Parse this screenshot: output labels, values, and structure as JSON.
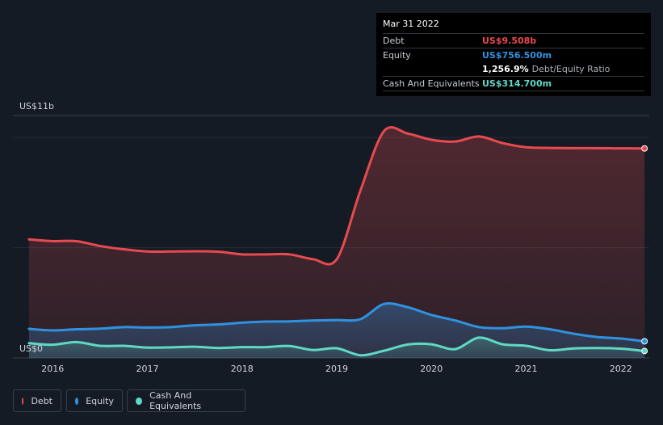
{
  "chart_data": {
    "type": "area",
    "y_axis_top_label": "US$11b",
    "y_axis_bottom_label": "US$0",
    "ylim": [
      0,
      11
    ],
    "x_ticks": [
      {
        "label": "2016",
        "x": 2016.0
      },
      {
        "label": "2017",
        "x": 2017.0
      },
      {
        "label": "2018",
        "x": 2018.0
      },
      {
        "label": "2019",
        "x": 2019.0
      },
      {
        "label": "2020",
        "x": 2020.0
      },
      {
        "label": "2021",
        "x": 2021.0
      },
      {
        "label": "2022",
        "x": 2022.0
      }
    ],
    "xlim": [
      2015.58,
      2022.3
    ],
    "series": [
      {
        "name": "Debt",
        "color": "#e84a4f",
        "points": [
          [
            2015.75,
            5.38
          ],
          [
            2016.0,
            5.3
          ],
          [
            2016.25,
            5.3
          ],
          [
            2016.5,
            5.08
          ],
          [
            2016.75,
            4.93
          ],
          [
            2017.0,
            4.83
          ],
          [
            2017.25,
            4.83
          ],
          [
            2017.5,
            4.84
          ],
          [
            2017.75,
            4.82
          ],
          [
            2018.0,
            4.7
          ],
          [
            2018.25,
            4.7
          ],
          [
            2018.5,
            4.7
          ],
          [
            2018.75,
            4.48
          ],
          [
            2019.0,
            4.48
          ],
          [
            2019.25,
            7.6
          ],
          [
            2019.5,
            10.3
          ],
          [
            2019.75,
            10.18
          ],
          [
            2020.0,
            9.9
          ],
          [
            2020.25,
            9.82
          ],
          [
            2020.5,
            10.05
          ],
          [
            2020.75,
            9.75
          ],
          [
            2021.0,
            9.56
          ],
          [
            2021.25,
            9.53
          ],
          [
            2021.5,
            9.52
          ],
          [
            2021.75,
            9.52
          ],
          [
            2022.0,
            9.51
          ],
          [
            2022.25,
            9.508
          ]
        ]
      },
      {
        "name": "Equity",
        "color": "#2f92e0",
        "points": [
          [
            2015.75,
            1.32
          ],
          [
            2016.0,
            1.25
          ],
          [
            2016.25,
            1.3
          ],
          [
            2016.5,
            1.33
          ],
          [
            2016.75,
            1.4
          ],
          [
            2017.0,
            1.38
          ],
          [
            2017.25,
            1.4
          ],
          [
            2017.5,
            1.48
          ],
          [
            2017.75,
            1.52
          ],
          [
            2018.0,
            1.6
          ],
          [
            2018.25,
            1.65
          ],
          [
            2018.5,
            1.66
          ],
          [
            2018.75,
            1.7
          ],
          [
            2019.0,
            1.72
          ],
          [
            2019.25,
            1.76
          ],
          [
            2019.5,
            2.45
          ],
          [
            2019.75,
            2.3
          ],
          [
            2020.0,
            1.95
          ],
          [
            2020.25,
            1.7
          ],
          [
            2020.5,
            1.4
          ],
          [
            2020.75,
            1.35
          ],
          [
            2021.0,
            1.42
          ],
          [
            2021.25,
            1.3
          ],
          [
            2021.5,
            1.1
          ],
          [
            2021.75,
            0.95
          ],
          [
            2022.0,
            0.88
          ],
          [
            2022.25,
            0.7565
          ]
        ]
      },
      {
        "name": "Cash And Equivalents",
        "color": "#5fd9c6",
        "points": [
          [
            2015.75,
            0.67
          ],
          [
            2016.0,
            0.6
          ],
          [
            2016.25,
            0.72
          ],
          [
            2016.5,
            0.55
          ],
          [
            2016.75,
            0.55
          ],
          [
            2017.0,
            0.47
          ],
          [
            2017.25,
            0.48
          ],
          [
            2017.5,
            0.51
          ],
          [
            2017.75,
            0.45
          ],
          [
            2018.0,
            0.49
          ],
          [
            2018.25,
            0.49
          ],
          [
            2018.5,
            0.54
          ],
          [
            2018.75,
            0.36
          ],
          [
            2019.0,
            0.44
          ],
          [
            2019.25,
            0.12
          ],
          [
            2019.5,
            0.33
          ],
          [
            2019.75,
            0.61
          ],
          [
            2020.0,
            0.62
          ],
          [
            2020.25,
            0.4
          ],
          [
            2020.5,
            0.92
          ],
          [
            2020.75,
            0.62
          ],
          [
            2021.0,
            0.55
          ],
          [
            2021.25,
            0.35
          ],
          [
            2021.5,
            0.43
          ],
          [
            2021.75,
            0.45
          ],
          [
            2022.0,
            0.42
          ],
          [
            2022.25,
            0.3147
          ]
        ]
      }
    ]
  },
  "tooltip": {
    "date": "Mar 31 2022",
    "debt_label": "Debt",
    "debt_value": "US$9.508b",
    "equity_label": "Equity",
    "equity_value": "US$756.500m",
    "ratio_value": "1,256.9%",
    "ratio_label": "Debt/Equity Ratio",
    "cash_label": "Cash And Equivalents",
    "cash_value": "US$314.700m"
  },
  "legend": {
    "debt": "Debt",
    "equity": "Equity",
    "cash": "Cash And Equivalents"
  },
  "colors": {
    "debt": "#e84a4f",
    "equity": "#2f92e0",
    "cash": "#5fd9c6"
  }
}
